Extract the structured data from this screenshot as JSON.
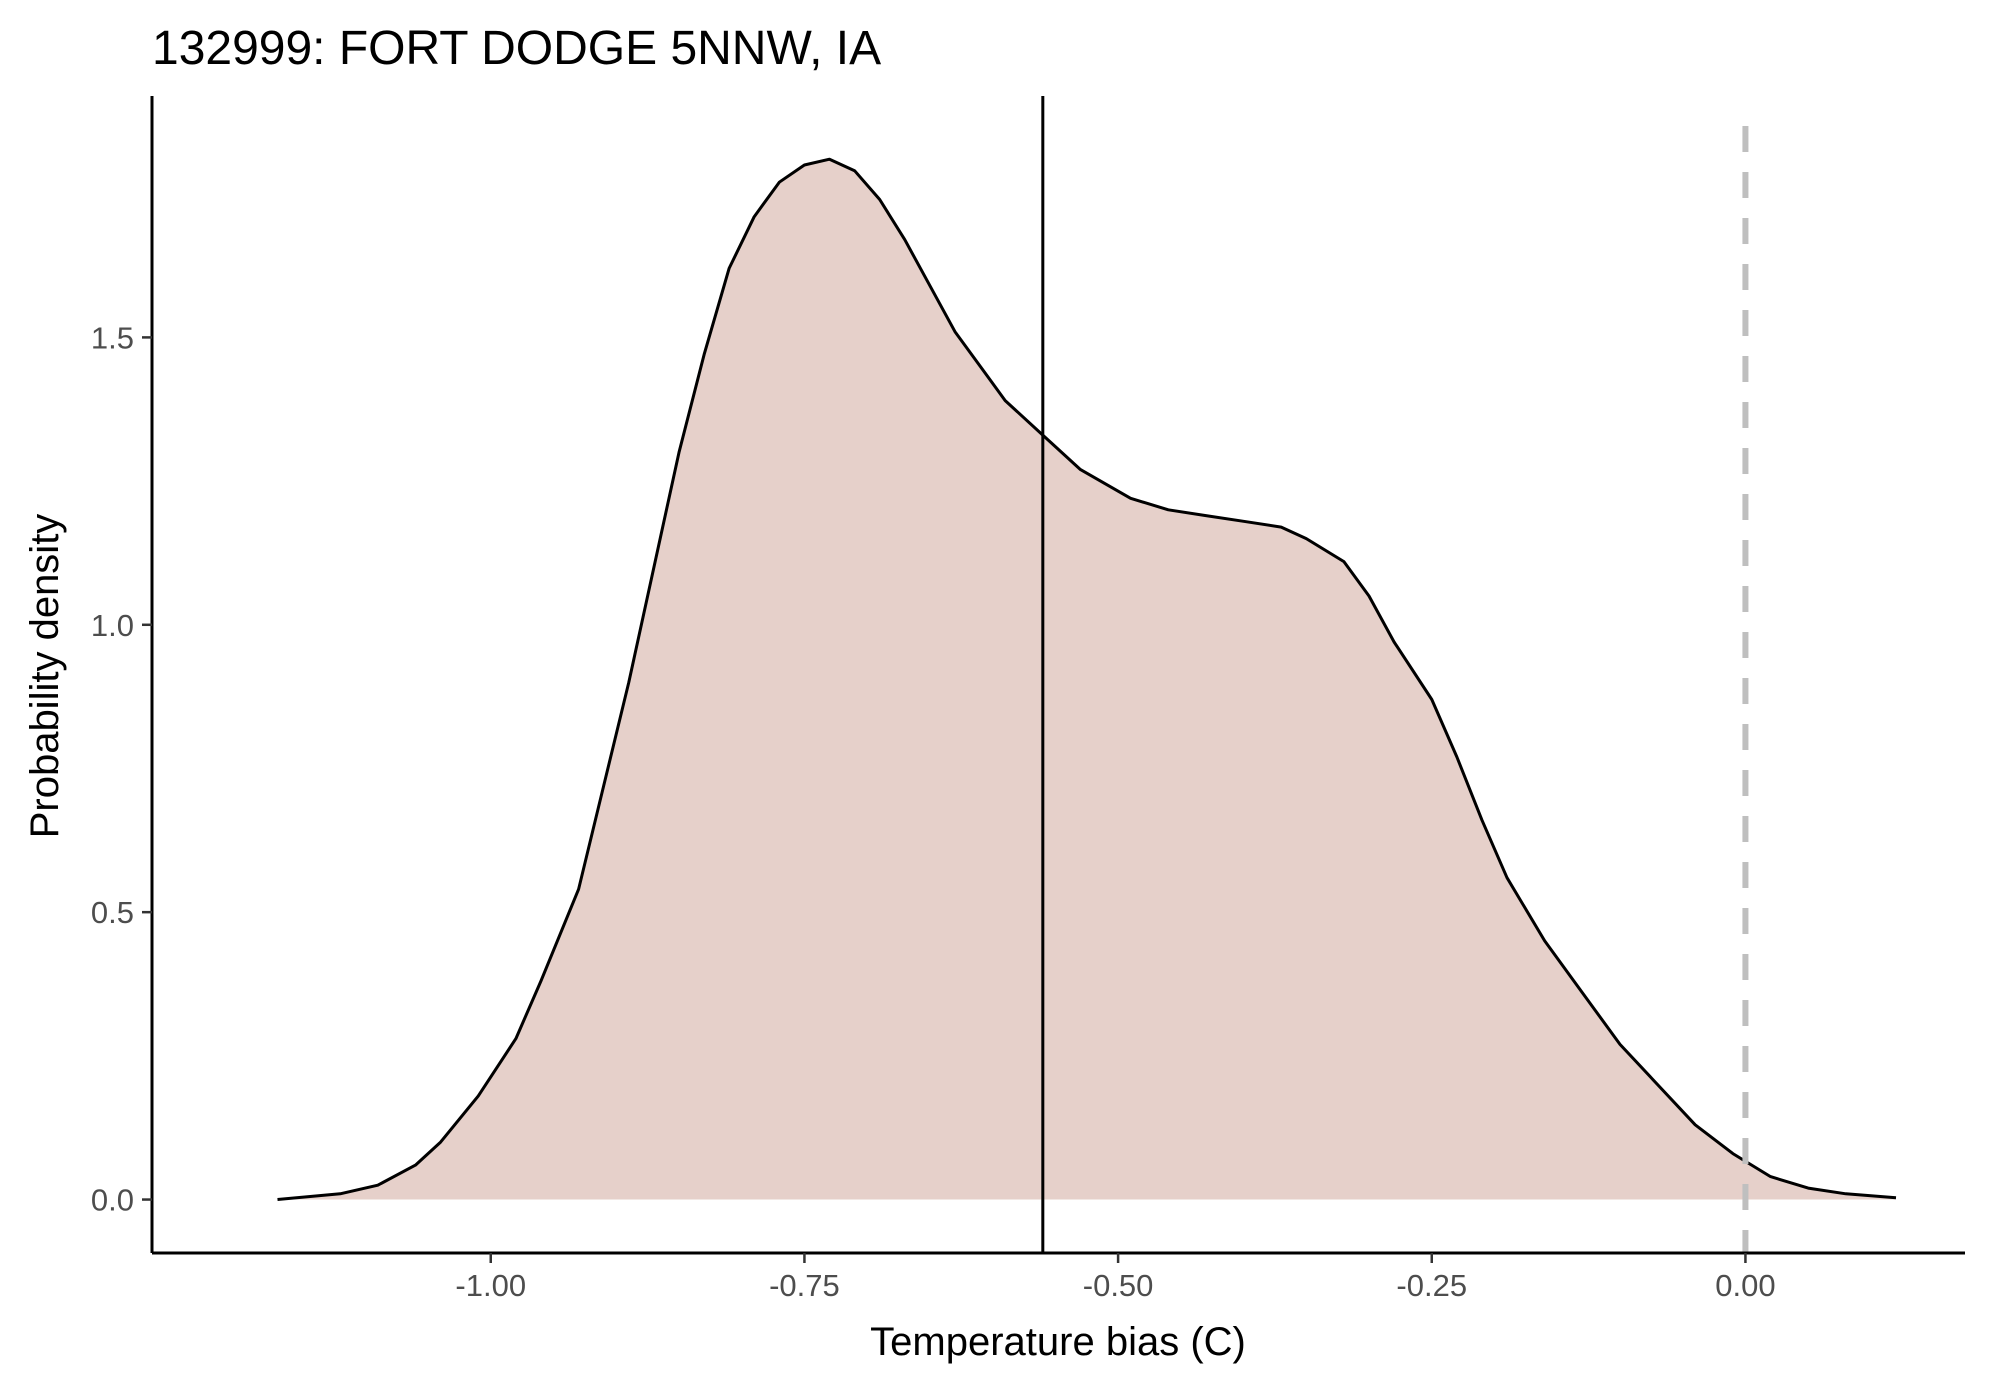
{
  "chart_data": {
    "type": "area",
    "title": "132999: FORT DODGE 5NNW, IA",
    "xlabel": "Temperature bias (C)",
    "ylabel": "Probability density",
    "xlim": [
      -1.27,
      0.175
    ],
    "ylim": [
      -0.093,
      1.92
    ],
    "x_ticks": [
      -1.0,
      -0.75,
      -0.5,
      -0.25,
      0.0
    ],
    "x_tick_labels": [
      "-1.00",
      "-0.75",
      "-0.50",
      "-0.25",
      "0.00"
    ],
    "y_ticks": [
      0.0,
      0.5,
      1.0,
      1.5
    ],
    "y_tick_labels": [
      "0.0",
      "0.5",
      "1.0",
      "1.5"
    ],
    "grid": false,
    "fill_color": "#e6d0ca",
    "line_color": "#000000",
    "series": [
      {
        "x": [
          -1.17,
          -1.12,
          -1.09,
          -1.06,
          -1.04,
          -1.01,
          -0.98,
          -0.96,
          -0.93,
          -0.91,
          -0.89,
          -0.87,
          -0.85,
          -0.83,
          -0.81,
          -0.79,
          -0.77,
          -0.75,
          -0.73,
          -0.71,
          -0.69,
          -0.67,
          -0.65,
          -0.63,
          -0.61,
          -0.59,
          -0.56,
          -0.53,
          -0.49,
          -0.46,
          -0.43,
          -0.4,
          -0.37,
          -0.35,
          -0.32,
          -0.3,
          -0.28,
          -0.25,
          -0.23,
          -0.21,
          -0.19,
          -0.16,
          -0.13,
          -0.1,
          -0.07,
          -0.04,
          -0.01,
          0.02,
          0.05,
          0.08,
          0.12
        ],
        "y": [
          0.0,
          0.01,
          0.025,
          0.06,
          0.1,
          0.18,
          0.28,
          0.38,
          0.54,
          0.72,
          0.9,
          1.1,
          1.3,
          1.47,
          1.62,
          1.71,
          1.77,
          1.8,
          1.81,
          1.79,
          1.74,
          1.67,
          1.59,
          1.51,
          1.45,
          1.39,
          1.33,
          1.27,
          1.22,
          1.2,
          1.19,
          1.18,
          1.17,
          1.15,
          1.11,
          1.05,
          0.97,
          0.87,
          0.77,
          0.66,
          0.56,
          0.45,
          0.36,
          0.27,
          0.2,
          0.13,
          0.08,
          0.04,
          0.02,
          0.01,
          0.003
        ]
      }
    ],
    "reference_lines": [
      {
        "axis": "x",
        "value": -0.56,
        "style": "solid",
        "color": "#000000"
      },
      {
        "axis": "x",
        "value": 0.0,
        "style": "dashed",
        "color": "#bfbfbf"
      }
    ]
  }
}
